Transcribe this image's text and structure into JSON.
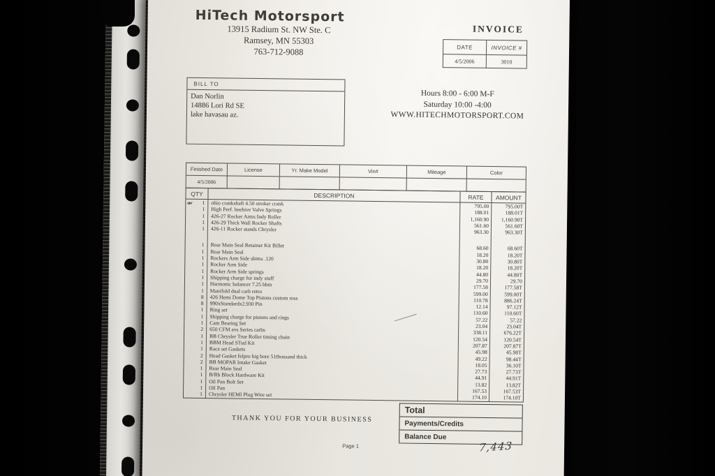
{
  "company": {
    "name": "HiTech Motorsport",
    "address1": "13915 Radium St. NW  Ste. C",
    "address2": "Ramsey, MN 55303",
    "phone": "763-712-9088"
  },
  "invoice_header": {
    "title": "INVOICE",
    "date_label": "DATE",
    "number_label": "INVOICE #",
    "date": "4/5/2006",
    "number": "3010"
  },
  "bill_to": {
    "label": "BILL TO",
    "lines": [
      "Dan Norlin",
      "14886 Lori Rd SE",
      "lake havasau az."
    ]
  },
  "hours": {
    "line1": "Hours 8:00 - 6:00 M-F",
    "line2": "Saturday 10:00 -4:00",
    "line3": "WWW.HITECHMOTORSPORT.COM"
  },
  "vehicle_table": {
    "headers": [
      "Finished Date",
      "License",
      "Yr. Make Model",
      "Vin#",
      "Mileage",
      "Color"
    ],
    "row": [
      "4/5/2006",
      "",
      "",
      "",
      "",
      ""
    ]
  },
  "items_table": {
    "headers": {
      "qty": "QTY",
      "description": "DESCRIPTION",
      "rate": "RATE",
      "amount": "AMOUNT"
    },
    "margin_note": "ow",
    "rows": [
      {
        "qty": "1",
        "description": "ohio crankshaft 4.50 stroker crank",
        "rate": "795.00",
        "amount": "795.00T"
      },
      {
        "qty": "1",
        "description": "High Perf. beehive Valve Springs",
        "rate": "188.01",
        "amount": "188.01T"
      },
      {
        "qty": "1",
        "description": "426-27 Rocker Arms Indy Roller",
        "rate": "1,160.90",
        "amount": "1,160.90T"
      },
      {
        "qty": "1",
        "description": "426-29 Thick Wall Rocker Shafts",
        "rate": "561.60",
        "amount": "561.60T"
      },
      {
        "qty": "1",
        "description": "426-11 Rocker stands  Chrysler",
        "rate": "963.30",
        "amount": "963.30T"
      },
      {
        "blank": true
      },
      {
        "qty": "1",
        "description": "Rear Main Seal Retainer Kit Billet",
        "rate": "68.60",
        "amount": "68.60T"
      },
      {
        "qty": "1",
        "description": "Rear Main Seal",
        "rate": "18.20",
        "amount": "18.20T"
      },
      {
        "qty": "1",
        "description": "Rockers Arm Side shims .120",
        "rate": "30.80",
        "amount": "30.80T"
      },
      {
        "qty": "1",
        "description": "Rocker Arm Side",
        "rate": "18.20",
        "amount": "18.20T"
      },
      {
        "qty": "1",
        "description": "Rocker Arm Side springs",
        "rate": "44.80",
        "amount": "44.80T"
      },
      {
        "qty": "1",
        "description": "Shipping charge for indy stuff",
        "rate": "29.70",
        "amount": "29.70"
      },
      {
        "qty": "1",
        "description": "Harmonic balancer 7.25 bbm",
        "rate": "177.58",
        "amount": "177.58T"
      },
      {
        "qty": "1",
        "description": "Manifold dual carb retro",
        "rate": "599.00",
        "amount": "599.00T"
      },
      {
        "qty": "8",
        "description": "426 Hemi Dome Top Pistons custom ross",
        "rate": "110.78",
        "amount": "886.24T"
      },
      {
        "qty": "8",
        "description": "990xStandardx2.930 Pin",
        "rate": "12.14",
        "amount": "97.12T"
      },
      {
        "qty": "1",
        "description": "Ring set",
        "rate": "110.60",
        "amount": "110.60T"
      },
      {
        "qty": "1",
        "description": "Shipping charge for pistons and rings",
        "rate": "57.22",
        "amount": "57.22"
      },
      {
        "qty": "1",
        "description": "Cam Bearing Set",
        "rate": "23.04",
        "amount": "23.04T"
      },
      {
        "qty": "2",
        "description": "650 CFM avs  Series carbs",
        "rate": "338.11",
        "amount": "676.22T"
      },
      {
        "qty": "1",
        "description": "BB Chrysler True Roller timing chain",
        "rate": "120.54",
        "amount": "120.54T"
      },
      {
        "qty": "1",
        "description": "BBM Head STud Kit",
        "rate": "207.87",
        "amount": "207.87T"
      },
      {
        "qty": "1",
        "description": "Race set Gaskets",
        "rate": "45.98",
        "amount": "45.98T"
      },
      {
        "qty": "2",
        "description": "Head Gasket felpro big bore 51thousand thick",
        "rate": "49.22",
        "amount": "98.44T"
      },
      {
        "qty": "2",
        "description": "BB MOPAR Intake Gasket",
        "rate": "18.05",
        "amount": "36.10T"
      },
      {
        "qty": "1",
        "description": "Rear Main Seal",
        "rate": "27.73",
        "amount": "27.73T"
      },
      {
        "qty": "1",
        "description": "B/Rb Block Hardware Kit",
        "rate": "44.91",
        "amount": "44.91T"
      },
      {
        "qty": "1",
        "description": "Oil Pan Bolt Set",
        "rate": "13.82",
        "amount": "13.82T"
      },
      {
        "qty": "1",
        "description": "Oil Pan",
        "rate": "167.53",
        "amount": "167.53T"
      },
      {
        "qty": "1",
        "description": "Chrysler HEMI Plug Wire set",
        "rate": "174.10",
        "amount": "174.10T"
      }
    ]
  },
  "totals": {
    "rows": [
      {
        "label": "Total",
        "value": ""
      },
      {
        "label": "Payments/Credits",
        "value": ""
      },
      {
        "label": "Balance Due",
        "value": ""
      }
    ]
  },
  "footer": {
    "thanks": "THANK YOU FOR YOUR BUSINESS",
    "page": "Page 1",
    "handwritten_note": "7,443"
  },
  "colors": {
    "paper": "#f1efe9",
    "ink": "#35322e",
    "background": "#000000"
  }
}
